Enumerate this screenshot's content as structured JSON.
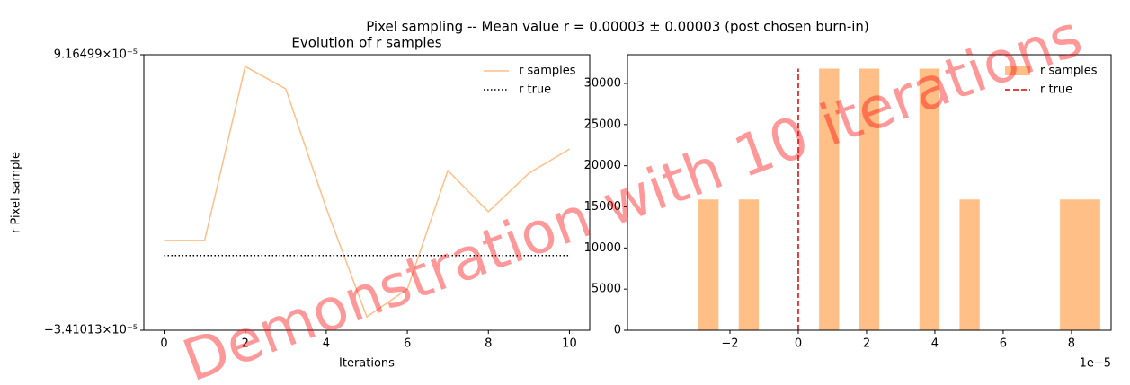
{
  "title": "Pixel sampling -- Mean value r = 0.00003 ± 0.00003 (post chosen burn-in)",
  "watermark": "Demonstration with 10 iterations",
  "chart_data": [
    {
      "type": "line",
      "title": "Evolution of r samples",
      "xlabel": "Iterations",
      "ylabel": "r Pixel sample",
      "x": [
        0,
        1,
        2,
        3,
        4,
        5,
        6,
        7,
        8,
        9,
        10
      ],
      "series": [
        {
          "name": "r samples",
          "color": "#ffbf86",
          "style": "solid",
          "values": [
            6.9e-06,
            6.9e-06,
            8.63e-05,
            7.61e-05,
            2.16e-05,
            -2.8e-05,
            -1.53e-05,
            3.88e-05,
            2e-05,
            3.76e-05,
            4.86e-05
          ]
        },
        {
          "name": "r true",
          "color": "#000000",
          "style": "dotted",
          "values": [
            0,
            0,
            0,
            0,
            0,
            0,
            0,
            0,
            0,
            0,
            0
          ]
        }
      ],
      "xlim": [
        -0.5,
        10.5
      ],
      "xticks": [
        0,
        2,
        4,
        6,
        8,
        10
      ],
      "ylim": [
        -3.41013e-05,
        9.16499e-05
      ],
      "yticks": [
        {
          "value": -3.41013e-05,
          "label": "−3.41013×10⁻⁵"
        },
        {
          "value": 9.16499e-05,
          "label": "9.16499×10⁻⁵"
        }
      ],
      "legend": "upper right"
    },
    {
      "type": "histogram",
      "bins": [
        -2.92e-05,
        -2.332e-05,
        -1.744e-05,
        -1.156e-05,
        -5.68e-06,
        2e-07,
        6.08e-06,
        1.196e-05,
        1.784e-05,
        2.372e-05,
        2.96e-05,
        3.548e-05,
        4.136e-05,
        4.724e-05,
        5.312e-05,
        5.9e-05,
        6.488e-05,
        7.076e-05,
        7.664e-05,
        8.252e-05,
        8.84e-05
      ],
      "series": [
        {
          "name": "r samples",
          "color": "#ffbf86",
          "values": [
            15900,
            0,
            15900,
            0,
            0,
            0,
            31800,
            0,
            31800,
            0,
            0,
            31800,
            0,
            15900,
            0,
            0,
            0,
            0,
            15900,
            15900
          ]
        }
      ],
      "vlines": [
        {
          "name": "r true",
          "color": "#e00000",
          "style": "dashed",
          "x": 0
        }
      ],
      "xlim": [
        -5e-05,
        9.16e-05
      ],
      "xticks": [
        {
          "value": -2e-05,
          "label": "−2"
        },
        {
          "value": 0,
          "label": "0"
        },
        {
          "value": 2e-05,
          "label": "2"
        },
        {
          "value": 4e-05,
          "label": "4"
        },
        {
          "value": 6e-05,
          "label": "6"
        },
        {
          "value": 8e-05,
          "label": "8"
        }
      ],
      "x_offset_label": "1e−5",
      "ylim": [
        0,
        33490
      ],
      "yticks": [
        0,
        5000,
        10000,
        15000,
        20000,
        25000,
        30000
      ],
      "legend": "upper right"
    }
  ]
}
